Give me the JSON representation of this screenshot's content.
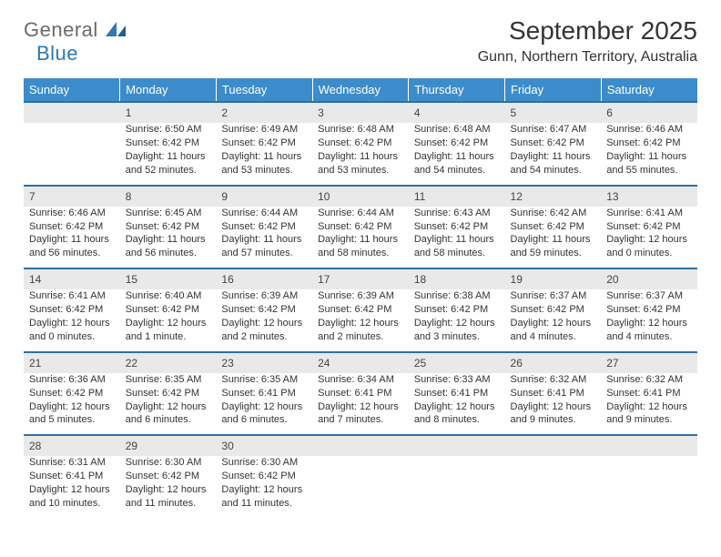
{
  "logo": {
    "part1": "General",
    "part2": "Blue"
  },
  "title": "September 2025",
  "location": "Gunn, Northern Territory, Australia",
  "colors": {
    "header_bg": "#3c8ccb",
    "header_text": "#ffffff",
    "daynum_bg": "#e9e9e9",
    "row_divider": "#2f6fa3",
    "text": "#333333",
    "logo_gray": "#6b6b6b",
    "logo_blue": "#2a78b8",
    "page_bg": "#ffffff"
  },
  "fonts": {
    "title_size_pt": 21,
    "location_size_pt": 12,
    "header_size_pt": 10,
    "cell_size_pt": 8
  },
  "day_headers": [
    "Sunday",
    "Monday",
    "Tuesday",
    "Wednesday",
    "Thursday",
    "Friday",
    "Saturday"
  ],
  "weeks": [
    {
      "nums": [
        "",
        "1",
        "2",
        "3",
        "4",
        "5",
        "6"
      ],
      "cells": [
        "",
        "Sunrise: 6:50 AM\nSunset: 6:42 PM\nDaylight: 11 hours and 52 minutes.",
        "Sunrise: 6:49 AM\nSunset: 6:42 PM\nDaylight: 11 hours and 53 minutes.",
        "Sunrise: 6:48 AM\nSunset: 6:42 PM\nDaylight: 11 hours and 53 minutes.",
        "Sunrise: 6:48 AM\nSunset: 6:42 PM\nDaylight: 11 hours and 54 minutes.",
        "Sunrise: 6:47 AM\nSunset: 6:42 PM\nDaylight: 11 hours and 54 minutes.",
        "Sunrise: 6:46 AM\nSunset: 6:42 PM\nDaylight: 11 hours and 55 minutes."
      ]
    },
    {
      "nums": [
        "7",
        "8",
        "9",
        "10",
        "11",
        "12",
        "13"
      ],
      "cells": [
        "Sunrise: 6:46 AM\nSunset: 6:42 PM\nDaylight: 11 hours and 56 minutes.",
        "Sunrise: 6:45 AM\nSunset: 6:42 PM\nDaylight: 11 hours and 56 minutes.",
        "Sunrise: 6:44 AM\nSunset: 6:42 PM\nDaylight: 11 hours and 57 minutes.",
        "Sunrise: 6:44 AM\nSunset: 6:42 PM\nDaylight: 11 hours and 58 minutes.",
        "Sunrise: 6:43 AM\nSunset: 6:42 PM\nDaylight: 11 hours and 58 minutes.",
        "Sunrise: 6:42 AM\nSunset: 6:42 PM\nDaylight: 11 hours and 59 minutes.",
        "Sunrise: 6:41 AM\nSunset: 6:42 PM\nDaylight: 12 hours and 0 minutes."
      ]
    },
    {
      "nums": [
        "14",
        "15",
        "16",
        "17",
        "18",
        "19",
        "20"
      ],
      "cells": [
        "Sunrise: 6:41 AM\nSunset: 6:42 PM\nDaylight: 12 hours and 0 minutes.",
        "Sunrise: 6:40 AM\nSunset: 6:42 PM\nDaylight: 12 hours and 1 minute.",
        "Sunrise: 6:39 AM\nSunset: 6:42 PM\nDaylight: 12 hours and 2 minutes.",
        "Sunrise: 6:39 AM\nSunset: 6:42 PM\nDaylight: 12 hours and 2 minutes.",
        "Sunrise: 6:38 AM\nSunset: 6:42 PM\nDaylight: 12 hours and 3 minutes.",
        "Sunrise: 6:37 AM\nSunset: 6:42 PM\nDaylight: 12 hours and 4 minutes.",
        "Sunrise: 6:37 AM\nSunset: 6:42 PM\nDaylight: 12 hours and 4 minutes."
      ]
    },
    {
      "nums": [
        "21",
        "22",
        "23",
        "24",
        "25",
        "26",
        "27"
      ],
      "cells": [
        "Sunrise: 6:36 AM\nSunset: 6:42 PM\nDaylight: 12 hours and 5 minutes.",
        "Sunrise: 6:35 AM\nSunset: 6:42 PM\nDaylight: 12 hours and 6 minutes.",
        "Sunrise: 6:35 AM\nSunset: 6:41 PM\nDaylight: 12 hours and 6 minutes.",
        "Sunrise: 6:34 AM\nSunset: 6:41 PM\nDaylight: 12 hours and 7 minutes.",
        "Sunrise: 6:33 AM\nSunset: 6:41 PM\nDaylight: 12 hours and 8 minutes.",
        "Sunrise: 6:32 AM\nSunset: 6:41 PM\nDaylight: 12 hours and 9 minutes.",
        "Sunrise: 6:32 AM\nSunset: 6:41 PM\nDaylight: 12 hours and 9 minutes."
      ]
    },
    {
      "nums": [
        "28",
        "29",
        "30",
        "",
        "",
        "",
        ""
      ],
      "cells": [
        "Sunrise: 6:31 AM\nSunset: 6:41 PM\nDaylight: 12 hours and 10 minutes.",
        "Sunrise: 6:30 AM\nSunset: 6:42 PM\nDaylight: 12 hours and 11 minutes.",
        "Sunrise: 6:30 AM\nSunset: 6:42 PM\nDaylight: 12 hours and 11 minutes.",
        "",
        "",
        "",
        ""
      ]
    }
  ]
}
